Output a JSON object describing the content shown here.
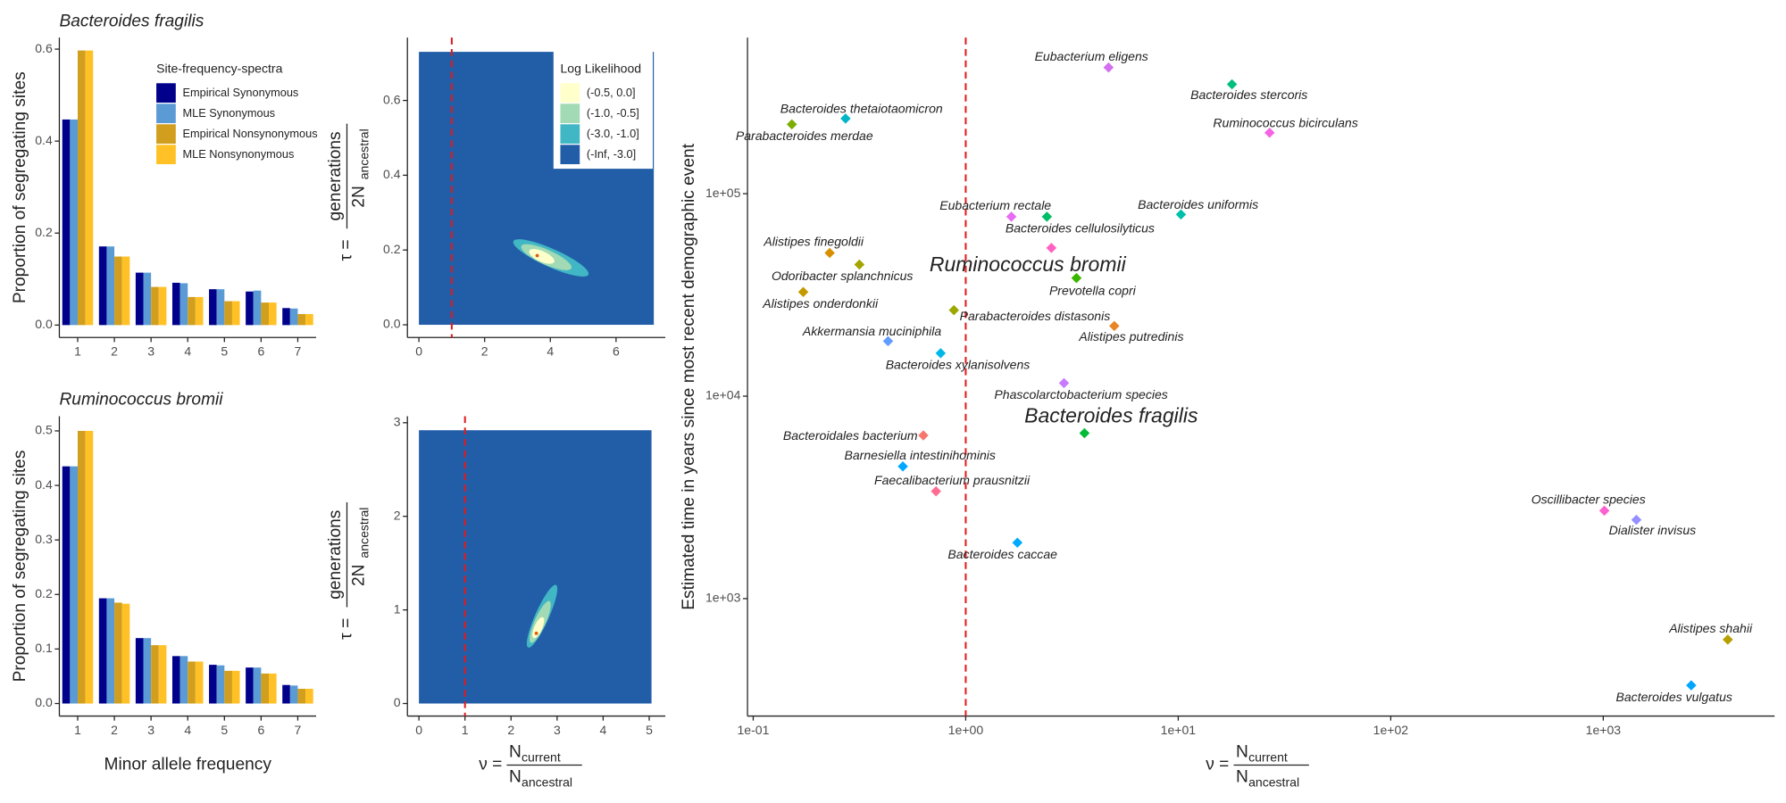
{
  "chart_data": [
    {
      "type": "bar",
      "title": "Bacteroides fragilis",
      "ylabel": "Proportion of segregating sites",
      "categories": [
        "1",
        "2",
        "3",
        "4",
        "5",
        "6",
        "7"
      ],
      "legend_title": "Site-frequency-spectra",
      "series": [
        {
          "name": "Empirical Synonymous",
          "color": "#00008b",
          "values": [
            0.447,
            0.171,
            0.114,
            0.092,
            0.078,
            0.073,
            0.037
          ]
        },
        {
          "name": "MLE Synonymous",
          "color": "#5b9bd5",
          "values": [
            0.447,
            0.171,
            0.114,
            0.091,
            0.078,
            0.075,
            0.036
          ]
        },
        {
          "name": "Empirical Nonsynonymous",
          "color": "#d19e1e",
          "values": [
            0.597,
            0.149,
            0.083,
            0.061,
            0.052,
            0.049,
            0.024
          ]
        },
        {
          "name": "MLE Nonsynonymous",
          "color": "#ffc125",
          "values": [
            0.597,
            0.149,
            0.083,
            0.061,
            0.052,
            0.049,
            0.024
          ]
        }
      ],
      "ylim": [
        -0.027,
        0.625
      ],
      "yticks": [
        {
          "value": 0,
          "label": "0.0"
        },
        0.2,
        0.4,
        0.6
      ]
    },
    {
      "type": "bar",
      "title": "Ruminococcus bromii",
      "ylabel": "Proportion of segregating sites",
      "xlabel": "Minor allele frequency",
      "categories": [
        "1",
        "2",
        "3",
        "4",
        "5",
        "6",
        "7"
      ],
      "series": [
        {
          "name": "Empirical Synonymous",
          "color": "#00008b",
          "values": [
            0.435,
            0.193,
            0.12,
            0.087,
            0.071,
            0.066,
            0.034
          ]
        },
        {
          "name": "MLE Synonymous",
          "color": "#5b9bd5",
          "values": [
            0.435,
            0.193,
            0.12,
            0.087,
            0.07,
            0.066,
            0.033
          ]
        },
        {
          "name": "Empirical Nonsynonymous",
          "color": "#d19e1e",
          "values": [
            0.5,
            0.185,
            0.107,
            0.077,
            0.06,
            0.055,
            0.027
          ]
        },
        {
          "name": "MLE Nonsynonymous",
          "color": "#ffc125",
          "values": [
            0.5,
            0.183,
            0.107,
            0.077,
            0.06,
            0.055,
            0.027
          ]
        }
      ],
      "ylim": [
        -0.023,
        0.527
      ],
      "yticks": [
        {
          "value": 0,
          "label": "0.0"
        },
        0.1,
        0.2,
        0.3,
        0.4,
        0.5
      ]
    },
    {
      "type": "contour",
      "ylabel": {
        "lhs": "τ =",
        "numerator": "generations",
        "denominator": "2N",
        "denominator_sub": "ancestral"
      },
      "xlim": [
        -0.35,
        7.5
      ],
      "ylim": [
        -0.034,
        0.768
      ],
      "xticks": [
        0,
        2,
        4,
        6
      ],
      "yticks": [
        {
          "value": 0,
          "label": "0.0"
        },
        0.2,
        0.4,
        0.6
      ],
      "surface_x": [
        0,
        7.15
      ],
      "surface_y": [
        0,
        0.73
      ],
      "mle_x": 3.6,
      "mle_y": 0.185,
      "vline": 1,
      "vline_color": "#e31a1c",
      "legend_title": "Log Likelihood",
      "levels": [
        {
          "label": "(-0.5, 0.0]",
          "color": "#ffffcc"
        },
        {
          "label": "(-1.0, -0.5]",
          "color": "#a1dab4"
        },
        {
          "label": "(-3.0, -1.0]",
          "color": "#41b6c4"
        },
        {
          "label": "(-Inf, -3.0]",
          "color": "#225ea8"
        }
      ]
    },
    {
      "type": "contour",
      "ylabel": {
        "lhs": "τ =",
        "numerator": "generations",
        "denominator": "2N",
        "denominator_sub": "ancestral"
      },
      "xlabel": {
        "lhs": "ν =",
        "numerator": "N",
        "numerator_sub": "current",
        "denominator": "N",
        "denominator_sub": "ancestral"
      },
      "xlim": [
        -0.25,
        5.35
      ],
      "ylim": [
        -0.134,
        3.07
      ],
      "xticks": [
        0,
        1,
        2,
        3,
        4,
        5
      ],
      "yticks": [
        0,
        1,
        2,
        3
      ],
      "surface_x": [
        0,
        5.05
      ],
      "surface_y": [
        0,
        2.92
      ],
      "mle_x": 2.55,
      "mle_y": 0.75,
      "vline": 1,
      "vline_color": "#e31a1c",
      "levels": [
        {
          "color": "#ffffcc"
        },
        {
          "color": "#a1dab4"
        },
        {
          "color": "#41b6c4"
        },
        {
          "color": "#225ea8"
        }
      ]
    },
    {
      "type": "scatter",
      "log_x": true,
      "log_y": true,
      "ylabel": "Estimated time in years since most recent demographic event",
      "xlabel": {
        "lhs": "ν =",
        "numerator": "N",
        "numerator_sub": "current",
        "denominator": "N",
        "denominator_sub": "ancestral"
      },
      "xlim": [
        0.094,
        6400
      ],
      "ylim": [
        263,
        590000
      ],
      "xticks": [
        {
          "value": 0.1,
          "label": "1e-01"
        },
        {
          "value": 1,
          "label": "1e+00"
        },
        {
          "value": 10,
          "label": "1e+01"
        },
        {
          "value": 100,
          "label": "1e+02"
        },
        {
          "value": 1000,
          "label": "1e+03"
        }
      ],
      "yticks": [
        {
          "value": 1000,
          "label": "1e+03"
        },
        {
          "value": 10000,
          "label": "1e+04"
        },
        {
          "value": 100000,
          "label": "1e+05"
        }
      ],
      "vline": 1,
      "vline_color": "#e31a1c",
      "points": [
        {
          "name": "Eubacterium eligens",
          "x": 4.7,
          "y": 420000,
          "color": "#d36ff0"
        },
        {
          "name": "Bacteroides stercoris",
          "x": 17.9,
          "y": 347000,
          "color": "#00bf7d"
        },
        {
          "name": "Bacteroides thetaiotaomicron",
          "x": 0.272,
          "y": 235000,
          "color": "#00b5c8"
        },
        {
          "name": "Parabacteroides merdae",
          "x": 0.152,
          "y": 220000,
          "color": "#7cae00"
        },
        {
          "name": "Ruminococcus bicirculans",
          "x": 26.9,
          "y": 200000,
          "color": "#f564e3"
        },
        {
          "name": "Eubacterium rectale",
          "x": 1.64,
          "y": 77000,
          "color": "#e76bf3"
        },
        {
          "name": "Bacteroides cellulosilyticus",
          "x": 2.41,
          "y": 77000,
          "color": "#00be67"
        },
        {
          "name": "Bacteroides uniformis",
          "x": 10.3,
          "y": 79000,
          "color": "#00bfaa"
        },
        {
          "name": "Alistipes finegoldii",
          "x": 0.229,
          "y": 51000,
          "color": "#d89000"
        },
        {
          "name": "Ruminococcus bromii",
          "x": 2.53,
          "y": 54000,
          "color": "#ff61c3",
          "emphasis": true
        },
        {
          "name": "Odoribacter splanchnicus",
          "x": 0.316,
          "y": 44700,
          "color": "#a3a500"
        },
        {
          "name": "Prevotella copri",
          "x": 3.32,
          "y": 38300,
          "color": "#39b600"
        },
        {
          "name": "Alistipes onderdonkii",
          "x": 0.172,
          "y": 32700,
          "color": "#c49a00"
        },
        {
          "name": "Parabacteroides distasonis",
          "x": 0.88,
          "y": 26600,
          "color": "#9ca700"
        },
        {
          "name": "Alistipes putredinis",
          "x": 5.0,
          "y": 22200,
          "color": "#e88526"
        },
        {
          "name": "Akkermansia muciniphila",
          "x": 0.431,
          "y": 18700,
          "color": "#619cff"
        },
        {
          "name": "Bacteroides xylanisolvens",
          "x": 0.762,
          "y": 16300,
          "color": "#00b8e7"
        },
        {
          "name": "Phascolarctobacterium species",
          "x": 2.9,
          "y": 11600,
          "color": "#c77cff"
        },
        {
          "name": "Bacteroides fragilis",
          "x": 3.62,
          "y": 6560,
          "color": "#00ba38",
          "emphasis": true
        },
        {
          "name": "Bacteroidales bacterium",
          "x": 0.632,
          "y": 6400,
          "color": "#f8766d"
        },
        {
          "name": "Barnesiella intestinihominis",
          "x": 0.506,
          "y": 4500,
          "color": "#00a9ff"
        },
        {
          "name": "Faecalibacterium prausnitzii",
          "x": 0.725,
          "y": 3390,
          "color": "#ff6c91"
        },
        {
          "name": "Oscillibacter species",
          "x": 1012,
          "y": 2720,
          "color": "#fd61d1"
        },
        {
          "name": "Dialister invisus",
          "x": 1432,
          "y": 2450,
          "color": "#9590ff"
        },
        {
          "name": "Bacteroides caccae",
          "x": 1.75,
          "y": 1890,
          "color": "#00abfd"
        },
        {
          "name": "Alistipes shahii",
          "x": 3855,
          "y": 627,
          "color": "#b79f00"
        },
        {
          "name": "Bacteroides vulgatus",
          "x": 2594,
          "y": 373,
          "color": "#00a5ff"
        }
      ]
    }
  ]
}
